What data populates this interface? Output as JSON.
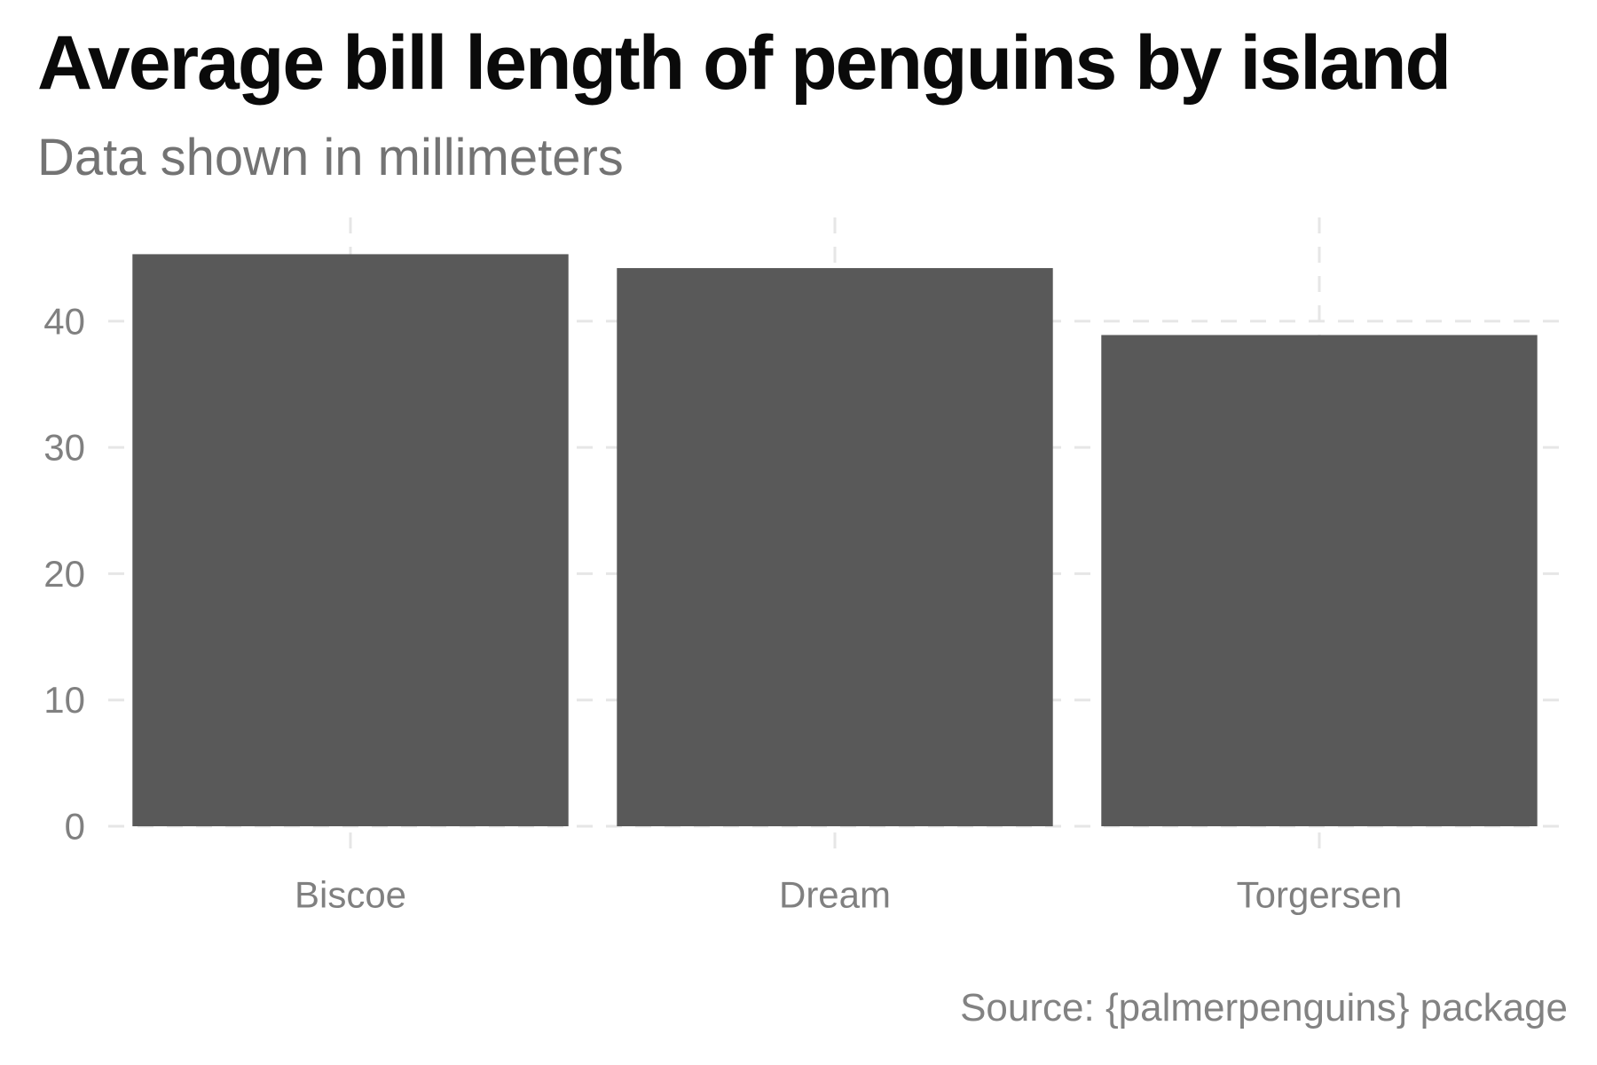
{
  "chart_data": {
    "type": "bar",
    "title": "Average bill length of penguins by island",
    "subtitle": "Data shown in millimeters",
    "caption": "Source: {palmerpenguins} package",
    "xlabel": "",
    "ylabel": "",
    "categories": [
      "Biscoe",
      "Dream",
      "Torgersen"
    ],
    "values": [
      45.3,
      44.2,
      38.9
    ],
    "ylim": [
      0,
      48
    ],
    "yticks": [
      0,
      10,
      20,
      30,
      40
    ],
    "ytick_labels": [
      "0",
      "10",
      "20",
      "30",
      "40"
    ],
    "grid": true,
    "grid_style": "dashed",
    "legend": "none",
    "colors": {
      "bar": "#595959",
      "grid": "#e6e6e6",
      "title": "#0a0a0a",
      "subtitle": "#737373",
      "tick_text": "#808080",
      "background": "#ffffff"
    }
  }
}
